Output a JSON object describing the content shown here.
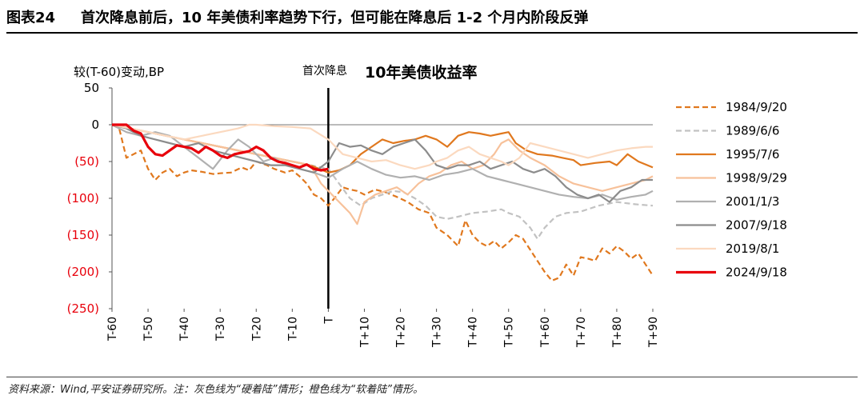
{
  "header": {
    "figure_no": "图表24",
    "title": "首次降息前后，10 年美债利率趋势下行，但可能在降息后 1-2 个月内阶段反弹"
  },
  "footer": {
    "source": "资料来源：Wind,平安证券研究所。注：灰色线为“硬着陆”情形；橙色线为“软着陆”情形。"
  },
  "chart_data": {
    "type": "line",
    "title": "10年美债收益率",
    "ylabel": "较(T-60)变动,BP",
    "ylim": [
      -250,
      50
    ],
    "yticks": [
      50,
      0,
      -50,
      -100,
      -150,
      -200,
      -250
    ],
    "ytick_labels": [
      "50",
      "0",
      "(50)",
      "(100)",
      "(150)",
      "(200)",
      "(250)"
    ],
    "negative_tick_color": "#e8000b",
    "xlim": [
      -60,
      90
    ],
    "xticks": [
      -60,
      -50,
      -40,
      -30,
      -20,
      -10,
      0,
      10,
      20,
      30,
      40,
      50,
      60,
      70,
      80,
      90
    ],
    "xtick_labels": [
      "T-60",
      "T-50",
      "T-40",
      "T-30",
      "T-20",
      "T-10",
      "T",
      "T+10",
      "T+20",
      "T+30",
      "T+40",
      "T+50",
      "T+60",
      "T+70",
      "T+80",
      "T+90"
    ],
    "event_marker": {
      "x": 0,
      "label": "首次降息"
    },
    "legend_position": "right",
    "series": [
      {
        "name": "1984/9/20",
        "color": "#e0781e",
        "dash": true,
        "width": 2.2,
        "x": [
          -60,
          -58,
          -56,
          -54,
          -52,
          -50,
          -48,
          -46,
          -44,
          -42,
          -40,
          -38,
          -35,
          -32,
          -30,
          -27,
          -24,
          -22,
          -20,
          -17,
          -15,
          -12,
          -10,
          -8,
          -6,
          -4,
          -2,
          0,
          2,
          4,
          6,
          8,
          10,
          13,
          16,
          19,
          22,
          25,
          28,
          30,
          33,
          36,
          38,
          40,
          42,
          44,
          46,
          48,
          50,
          52,
          54,
          56,
          58,
          60,
          62,
          64,
          66,
          68,
          70,
          72,
          74,
          76,
          78,
          80,
          82,
          84,
          86,
          88,
          90
        ],
        "y": [
          0,
          -5,
          -45,
          -40,
          -35,
          -60,
          -75,
          -65,
          -60,
          -70,
          -65,
          -62,
          -64,
          -67,
          -66,
          -65,
          -58,
          -62,
          -50,
          -55,
          -60,
          -65,
          -62,
          -70,
          -80,
          -95,
          -100,
          -110,
          -98,
          -85,
          -88,
          -90,
          -95,
          -88,
          -92,
          -98,
          -105,
          -115,
          -120,
          -140,
          -150,
          -165,
          -130,
          -150,
          -160,
          -165,
          -158,
          -168,
          -160,
          -150,
          -155,
          -170,
          -185,
          -200,
          -212,
          -208,
          -190,
          -205,
          -180,
          -182,
          -185,
          -168,
          -175,
          -165,
          -172,
          -182,
          -175,
          -190,
          -205
        ]
      },
      {
        "name": "1989/6/6",
        "color": "#c2c2c2",
        "dash": true,
        "width": 2.2,
        "x": [
          -60,
          -55,
          -50,
          -45,
          -40,
          -35,
          -30,
          -25,
          -20,
          -15,
          -10,
          -5,
          0,
          3,
          6,
          9,
          12,
          15,
          18,
          21,
          24,
          27,
          30,
          33,
          36,
          40,
          44,
          48,
          50,
          53,
          56,
          58,
          60,
          63,
          66,
          70,
          75,
          80,
          85,
          90
        ],
        "y": [
          0,
          -5,
          -10,
          -15,
          -20,
          -25,
          -30,
          -35,
          -40,
          -45,
          -50,
          -55,
          -60,
          -80,
          -100,
          -110,
          -100,
          -95,
          -90,
          -92,
          -100,
          -110,
          -125,
          -128,
          -125,
          -120,
          -118,
          -115,
          -120,
          -125,
          -140,
          -155,
          -140,
          -125,
          -120,
          -118,
          -110,
          -105,
          -108,
          -110
        ]
      },
      {
        "name": "1995/7/6",
        "color": "#e0781e",
        "dash": false,
        "width": 2.2,
        "x": [
          -60,
          -55,
          -50,
          -45,
          -40,
          -35,
          -30,
          -25,
          -20,
          -15,
          -10,
          -5,
          0,
          3,
          6,
          9,
          12,
          15,
          18,
          21,
          24,
          27,
          30,
          33,
          36,
          39,
          42,
          45,
          48,
          50,
          52,
          55,
          58,
          62,
          65,
          68,
          70,
          74,
          78,
          80,
          83,
          86,
          90
        ],
        "y": [
          0,
          -5,
          -10,
          -15,
          -20,
          -25,
          -30,
          -35,
          -40,
          -45,
          -50,
          -55,
          -65,
          -62,
          -55,
          -40,
          -30,
          -20,
          -25,
          -22,
          -20,
          -15,
          -20,
          -30,
          -15,
          -10,
          -12,
          -15,
          -12,
          -10,
          -25,
          -35,
          -40,
          -42,
          -45,
          -48,
          -55,
          -52,
          -50,
          -55,
          -40,
          -50,
          -58
        ]
      },
      {
        "name": "1998/9/29",
        "color": "#f7c19a",
        "dash": false,
        "width": 2.2,
        "x": [
          -60,
          -55,
          -50,
          -45,
          -40,
          -35,
          -30,
          -25,
          -20,
          -15,
          -10,
          -5,
          -2,
          0,
          2,
          4,
          6,
          8,
          10,
          13,
          16,
          19,
          22,
          25,
          28,
          31,
          34,
          37,
          40,
          43,
          46,
          48,
          50,
          53,
          56,
          60,
          64,
          68,
          72,
          76,
          80,
          84,
          88,
          90
        ],
        "y": [
          0,
          -5,
          -10,
          -15,
          -20,
          -25,
          -30,
          -35,
          -40,
          -45,
          -50,
          -55,
          -80,
          -90,
          -100,
          -110,
          -120,
          -135,
          -105,
          -95,
          -90,
          -85,
          -95,
          -80,
          -70,
          -65,
          -55,
          -50,
          -60,
          -55,
          -40,
          -25,
          -20,
          -35,
          -45,
          -55,
          -70,
          -80,
          -85,
          -90,
          -85,
          -80,
          -75,
          -70
        ]
      },
      {
        "name": "2001/1/3",
        "color": "#b0b0b0",
        "dash": false,
        "width": 2.2,
        "x": [
          -60,
          -56,
          -52,
          -48,
          -44,
          -40,
          -36,
          -32,
          -28,
          -25,
          -22,
          -18,
          -15,
          -12,
          -8,
          -4,
          0,
          4,
          8,
          12,
          16,
          20,
          24,
          28,
          32,
          36,
          40,
          44,
          48,
          52,
          56,
          60,
          64,
          68,
          72,
          76,
          80,
          84,
          88,
          90
        ],
        "y": [
          0,
          -10,
          -15,
          -10,
          -15,
          -30,
          -45,
          -60,
          -35,
          -20,
          -30,
          -50,
          -45,
          -55,
          -60,
          -65,
          -72,
          -60,
          -50,
          -60,
          -68,
          -72,
          -70,
          -75,
          -68,
          -65,
          -60,
          -70,
          -75,
          -80,
          -85,
          -90,
          -95,
          -98,
          -100,
          -95,
          -102,
          -98,
          -95,
          -90
        ]
      },
      {
        "name": "2007/9/18",
        "color": "#8c8c8c",
        "dash": false,
        "width": 2.2,
        "x": [
          -60,
          -56,
          -52,
          -48,
          -44,
          -40,
          -36,
          -32,
          -28,
          -24,
          -20,
          -16,
          -12,
          -8,
          -4,
          0,
          3,
          6,
          9,
          12,
          15,
          18,
          21,
          24,
          27,
          30,
          33,
          36,
          39,
          42,
          45,
          48,
          51,
          54,
          57,
          60,
          63,
          66,
          69,
          72,
          75,
          78,
          81,
          84,
          87,
          90
        ],
        "y": [
          0,
          -5,
          -15,
          -20,
          -25,
          -30,
          -25,
          -35,
          -40,
          -45,
          -50,
          -55,
          -55,
          -60,
          -65,
          -50,
          -25,
          -30,
          -28,
          -35,
          -40,
          -30,
          -25,
          -20,
          -35,
          -55,
          -60,
          -55,
          -55,
          -50,
          -60,
          -55,
          -50,
          -60,
          -65,
          -60,
          -70,
          -85,
          -95,
          -100,
          -95,
          -105,
          -90,
          -85,
          -75,
          -75
        ]
      },
      {
        "name": "2019/8/1",
        "color": "#fbd9bf",
        "dash": false,
        "width": 2.2,
        "x": [
          -60,
          -55,
          -50,
          -45,
          -40,
          -35,
          -30,
          -25,
          -22,
          -20,
          -15,
          -10,
          -5,
          0,
          4,
          8,
          12,
          16,
          20,
          24,
          28,
          30,
          33,
          36,
          39,
          42,
          45,
          48,
          50,
          53,
          56,
          60,
          64,
          68,
          72,
          76,
          80,
          84,
          88,
          90
        ],
        "y": [
          0,
          -5,
          -10,
          -15,
          -20,
          -15,
          -10,
          -5,
          0,
          0,
          -2,
          -3,
          -5,
          -20,
          -40,
          -45,
          -50,
          -48,
          -55,
          -60,
          -55,
          -50,
          -45,
          -35,
          -30,
          -40,
          -45,
          -50,
          -55,
          -45,
          -25,
          -30,
          -35,
          -40,
          -45,
          -40,
          -35,
          -32,
          -30,
          -30
        ]
      },
      {
        "name": "2024/9/18",
        "color": "#e8000b",
        "dash": false,
        "width": 3.2,
        "x": [
          -60,
          -58,
          -56,
          -54,
          -52,
          -50,
          -48,
          -46,
          -44,
          -42,
          -40,
          -38,
          -36,
          -34,
          -32,
          -30,
          -28,
          -26,
          -24,
          -22,
          -20,
          -18,
          -16,
          -14,
          -12,
          -10,
          -8,
          -6,
          -4,
          -2,
          0
        ],
        "y": [
          0,
          0,
          0,
          -8,
          -12,
          -30,
          -40,
          -42,
          -35,
          -28,
          -30,
          -32,
          -38,
          -30,
          -35,
          -42,
          -45,
          -40,
          -38,
          -36,
          -30,
          -35,
          -45,
          -50,
          -52,
          -55,
          -58,
          -54,
          -60,
          -62,
          -60
        ]
      }
    ]
  }
}
